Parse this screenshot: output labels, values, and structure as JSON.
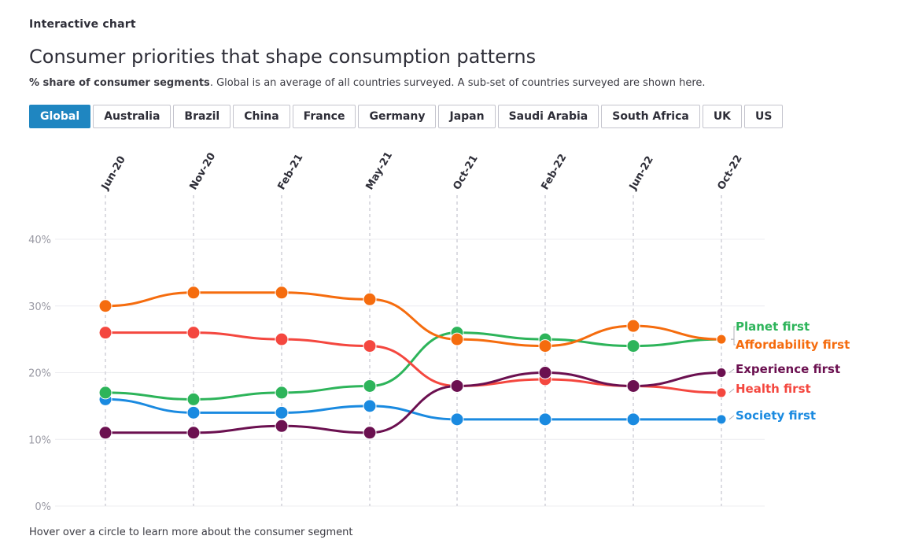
{
  "header": {
    "eyebrow": "Interactive chart",
    "title": "Consumer priorities that shape consumption patterns",
    "subtitle_bold": "% share of consumer segments",
    "subtitle_rest": ". Global is an average of all countries surveyed. A sub-set of countries surveyed are shown here."
  },
  "tabs": [
    {
      "label": "Global",
      "active": true
    },
    {
      "label": "Australia",
      "active": false
    },
    {
      "label": "Brazil",
      "active": false
    },
    {
      "label": "China",
      "active": false
    },
    {
      "label": "France",
      "active": false
    },
    {
      "label": "Germany",
      "active": false
    },
    {
      "label": "Japan",
      "active": false
    },
    {
      "label": "Saudi Arabia",
      "active": false
    },
    {
      "label": "South Africa",
      "active": false
    },
    {
      "label": "UK",
      "active": false
    },
    {
      "label": "US",
      "active": false
    }
  ],
  "footer": "Hover over a circle to learn more about the consumer segment",
  "chart_data": {
    "type": "line",
    "title": "Consumer priorities that shape consumption patterns",
    "ylabel": "% share of consumer segments",
    "categories": [
      "Jun-20",
      "Nov-20",
      "Feb-21",
      "May-21",
      "Oct-21",
      "Feb-22",
      "Jun-22",
      "Oct-22"
    ],
    "ylim": [
      0,
      40
    ],
    "yticks": [
      0,
      10,
      20,
      30,
      40
    ],
    "ytick_labels": [
      "0%",
      "10%",
      "20%",
      "30%",
      "40%"
    ],
    "series": [
      {
        "name": "Affordability first",
        "color": "#f56c0e",
        "values": [
          30,
          32,
          32,
          31,
          25,
          24,
          27,
          25
        ]
      },
      {
        "name": "Health first",
        "color": "#f4473f",
        "values": [
          26,
          26,
          25,
          24,
          18,
          19,
          18,
          17
        ]
      },
      {
        "name": "Planet first",
        "color": "#2db45a",
        "values": [
          17,
          16,
          17,
          18,
          26,
          25,
          24,
          25
        ]
      },
      {
        "name": "Society first",
        "color": "#1a8ae0",
        "values": [
          16,
          14,
          14,
          15,
          13,
          13,
          13,
          13
        ]
      },
      {
        "name": "Experience first",
        "color": "#6b1050",
        "values": [
          11,
          11,
          12,
          11,
          18,
          20,
          18,
          20
        ]
      }
    ],
    "legend": [
      {
        "name": "Planet first",
        "color": "#2db45a"
      },
      {
        "name": "Affordability first",
        "color": "#f56c0e"
      },
      {
        "name": "Experience first",
        "color": "#6b1050"
      },
      {
        "name": "Health first",
        "color": "#f4473f"
      },
      {
        "name": "Society first",
        "color": "#1a8ae0"
      }
    ]
  }
}
